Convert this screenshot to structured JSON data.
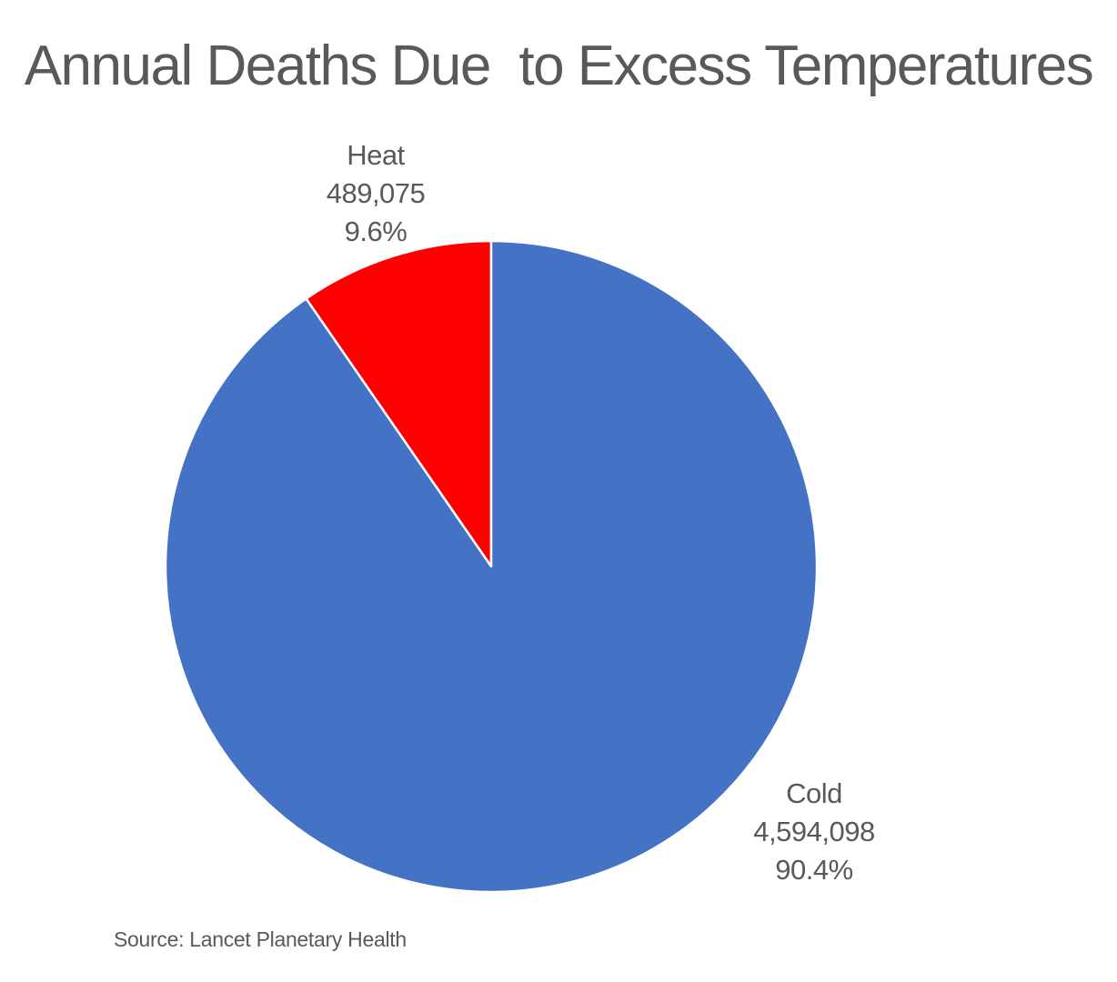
{
  "chart_data": {
    "type": "pie",
    "title": "Annual Deaths Due  to Excess Temperatures",
    "slices": [
      {
        "name": "Heat",
        "value": 489075,
        "value_label": "489,075",
        "percent_label": "9.6%",
        "color": "#FF0000"
      },
      {
        "name": "Cold",
        "value": 4594098,
        "value_label": "4,594,098",
        "percent_label": "90.4%",
        "color": "#4472C4"
      }
    ],
    "start_angle_deg": 0,
    "direction": "counterclockwise",
    "slice_border_color": "#FFFFFF",
    "legend": "none",
    "source": "Source: Lancet Planetary Health"
  }
}
